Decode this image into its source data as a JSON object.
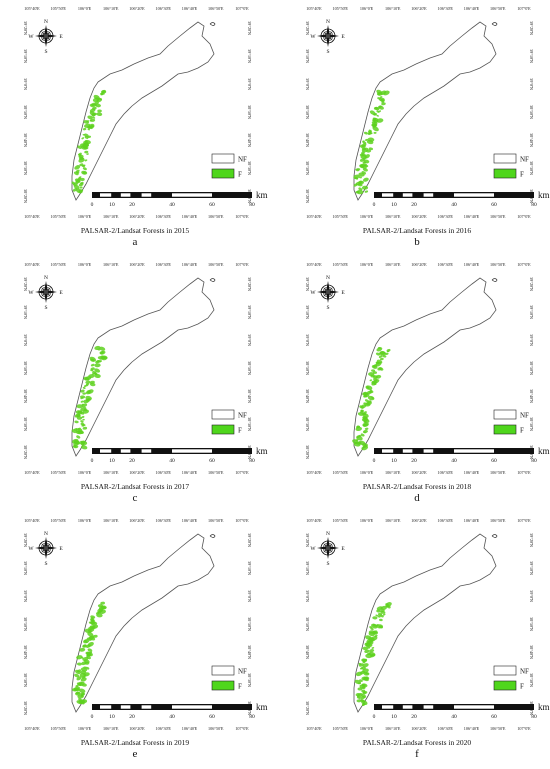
{
  "map_common": {
    "lon_ticks": [
      "105°40'E",
      "105°50'E",
      "106°0'E",
      "106°10'E",
      "106°20'E",
      "106°30'E",
      "106°40'E",
      "106°50'E",
      "107°0'E"
    ],
    "lat_ticks_left": [
      "39°20'N",
      "39°10'N",
      "39°0'N",
      "38°50'N",
      "38°40'N",
      "38°30'N",
      "38°20'N"
    ],
    "lat_ticks_right": [
      "39°20'N",
      "39°10'N",
      "39°0'N",
      "38°50'N",
      "38°40'N",
      "38°30'N",
      "38°20'N"
    ],
    "compass": {
      "n": "N",
      "s": "S",
      "e": "E",
      "w": "W"
    },
    "legend": [
      {
        "label": "NF",
        "color": "#ffffff"
      },
      {
        "label": "F",
        "color": "#4fd61c"
      }
    ],
    "scale_labels": [
      "0",
      "10",
      "20",
      "40",
      "60",
      "80"
    ],
    "scale_unit": "km",
    "forest_color": "#5ed11f",
    "boundary_color": "#555555"
  },
  "panels": [
    {
      "caption": "PALSAR-2/Landsat Forests in 2015",
      "letter": "a"
    },
    {
      "caption": "PALSAR-2/Landsat Forests in 2016",
      "letter": "b"
    },
    {
      "caption": "PALSAR-2/Landsat Forests in 2017",
      "letter": "c"
    },
    {
      "caption": "PALSAR-2/Landsat Forests in 2018",
      "letter": "d"
    },
    {
      "caption": "PALSAR-2/Landsat Forests in 2019",
      "letter": "e"
    },
    {
      "caption": "PALSAR-2/Landsat Forests in 2020",
      "letter": "f"
    }
  ]
}
